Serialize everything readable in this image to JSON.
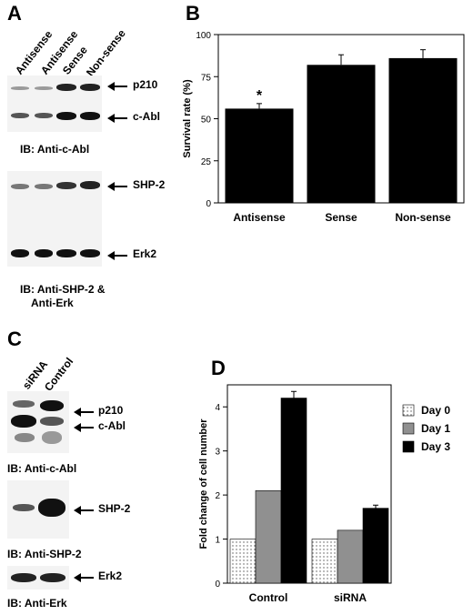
{
  "panels": {
    "a": {
      "letter": "A",
      "lanes": [
        "Antisense",
        "Antisense",
        "Sense",
        "Non-sense"
      ],
      "blot1": {
        "bands": [
          "p210",
          "c-Abl"
        ],
        "caption": "IB: Anti-c-Abl"
      },
      "blot2": {
        "bands": [
          "SHP-2",
          "Erk2"
        ],
        "caption_line1": "IB: Anti-SHP-2 &",
        "caption_line2": "Anti-Erk"
      }
    },
    "b": {
      "letter": "B"
    },
    "c": {
      "letter": "C",
      "lanes": [
        "siRNA",
        "Control"
      ],
      "blot1": {
        "bands": [
          "p210",
          "c-Abl"
        ],
        "caption": "IB: Anti-c-Abl"
      },
      "blot2": {
        "bands": [
          "SHP-2"
        ],
        "caption": "IB: Anti-SHP-2"
      },
      "blot3": {
        "bands": [
          "Erk2"
        ],
        "caption": "IB: Anti-Erk"
      }
    },
    "d": {
      "letter": "D"
    }
  },
  "chart_data": [
    {
      "type": "bar",
      "panel": "B",
      "categories": [
        "Antisense",
        "Sense",
        "Non-sense"
      ],
      "values": [
        56,
        82,
        86
      ],
      "errors": [
        3,
        6,
        5
      ],
      "annotations": [
        {
          "category": "Antisense",
          "text": "*"
        }
      ],
      "ylabel": "Survival rate (%)",
      "xlabel": "",
      "ylim": [
        0,
        100
      ],
      "yticks": [
        0,
        25,
        50,
        75,
        100
      ],
      "color": "#000000"
    },
    {
      "type": "bar",
      "panel": "D",
      "categories": [
        "Control",
        "siRNA"
      ],
      "series": [
        {
          "name": "Day 0",
          "values": [
            1.0,
            1.0
          ],
          "errors": [
            0,
            0
          ],
          "pattern": "dotted",
          "color": "#e8e8e8"
        },
        {
          "name": "Day 1",
          "values": [
            2.1,
            1.2
          ],
          "errors": [
            0,
            0
          ],
          "pattern": "solid",
          "color": "#909090"
        },
        {
          "name": "Day 3",
          "values": [
            4.2,
            1.7
          ],
          "errors": [
            0.15,
            0.07
          ],
          "pattern": "solid",
          "color": "#000000"
        }
      ],
      "ylabel": "Fold change of cell number",
      "xlabel": "",
      "ylim": [
        0,
        4.5
      ],
      "yticks": [
        0,
        1,
        2,
        3,
        4
      ],
      "legend_position": "right"
    }
  ]
}
